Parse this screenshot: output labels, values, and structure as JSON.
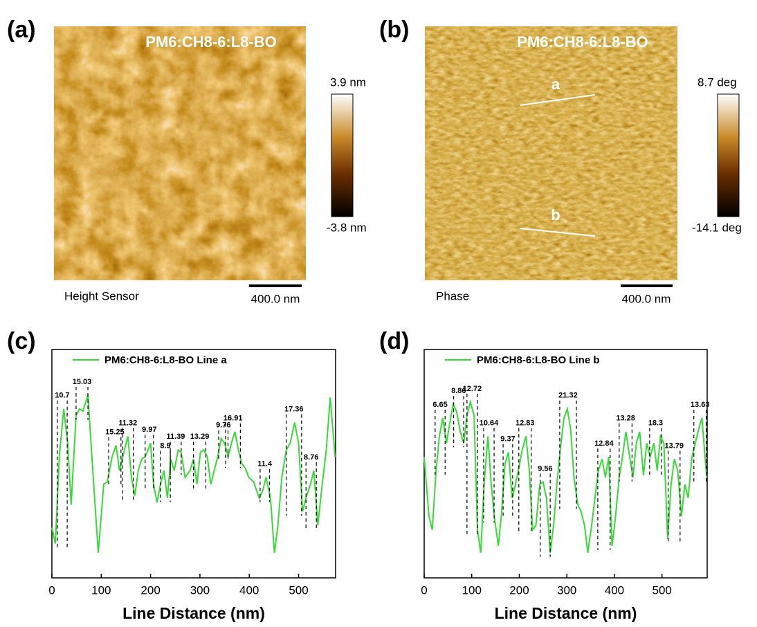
{
  "panels": [
    {
      "label": "(a)",
      "title": "PM6:CH8-6:L8-BO",
      "colorbar_max": "3.9 nm",
      "colorbar_min": "-3.8 nm",
      "channel": "Height Sensor",
      "scale_bar": "400.0 nm"
    },
    {
      "label": "(b)",
      "title": "PM6:CH8-6:L8-BO",
      "colorbar_max": "8.7 deg",
      "colorbar_min": "-14.1 deg",
      "channel": "Phase",
      "scale_bar": "400.0 nm",
      "line_labels": [
        "a",
        "b"
      ]
    }
  ],
  "chart_data": [
    {
      "type": "line",
      "panel_label": "(c)",
      "x_label": "Line Distance (nm)",
      "xlim": [
        0,
        575
      ],
      "xticks": [
        0,
        100,
        200,
        300,
        400,
        500
      ],
      "ylim": [
        0,
        100
      ],
      "x": [
        0,
        7,
        15,
        24,
        32,
        39,
        49,
        56,
        63,
        73,
        81,
        94,
        105,
        112,
        122,
        130,
        137,
        147,
        154,
        161,
        168,
        175,
        182,
        189,
        200,
        206,
        213,
        220,
        227,
        234,
        241,
        248,
        256,
        262,
        270,
        280,
        287,
        294,
        301,
        308,
        315,
        322,
        329,
        336,
        343,
        350,
        357,
        364,
        371,
        378,
        385,
        392,
        399,
        409,
        420,
        427,
        434,
        443,
        451,
        458,
        466,
        475,
        483,
        492,
        500,
        508,
        515,
        524,
        531,
        539,
        548,
        556,
        564,
        574
      ],
      "series": [
        {
          "name": "PM6:CH8-6:L8-BO Line a",
          "color": "#33dd33",
          "values": [
            22,
            15,
            53,
            74,
            59,
            32,
            71,
            74,
            73,
            80,
            53,
            11,
            41,
            42,
            53,
            58,
            47,
            56,
            62,
            44,
            36,
            47,
            52,
            53,
            59,
            41,
            33,
            41,
            47,
            35,
            52,
            47,
            56,
            55,
            44,
            47,
            52,
            41,
            55,
            56,
            53,
            41,
            47,
            53,
            61,
            59,
            53,
            59,
            64,
            56,
            50,
            48,
            44,
            42,
            35,
            38,
            44,
            35,
            11,
            23,
            44,
            56,
            59,
            68,
            59,
            29,
            35,
            41,
            47,
            23,
            41,
            56,
            79,
            53
          ]
        }
      ],
      "annotations": [
        {
          "value": 10.7,
          "x": [
            11,
            31
          ]
        },
        {
          "value": 15.03,
          "x": [
            49,
            73
          ]
        },
        {
          "value": 15.25,
          "x": [
            115,
            140
          ]
        },
        {
          "value": 11.32,
          "x": [
            143,
            165
          ]
        },
        {
          "value": 9.97,
          "x": [
            189,
            206
          ]
        },
        {
          "value": 8.9,
          "x": [
            220,
            240
          ]
        },
        {
          "value": 11.39,
          "x": [
            240,
            262
          ]
        },
        {
          "value": 13.29,
          "x": [
            287,
            312
          ]
        },
        {
          "value": 9.76,
          "x": [
            338,
            357
          ]
        },
        {
          "value": 16.91,
          "x": [
            352,
            382
          ]
        },
        {
          "value": 11.4,
          "x": [
            422,
            441
          ]
        },
        {
          "value": 17.36,
          "x": [
            475,
            506
          ]
        },
        {
          "value": 8.76,
          "x": [
            515,
            536
          ]
        }
      ]
    },
    {
      "type": "line",
      "panel_label": "(d)",
      "x_label": "Line Distance (nm)",
      "xlim": [
        0,
        595
      ],
      "xticks": [
        0,
        100,
        200,
        300,
        400,
        500
      ],
      "ylim": [
        0,
        100
      ],
      "x": [
        0,
        10,
        17,
        25,
        32,
        39,
        47,
        54,
        61,
        68,
        76,
        83,
        90,
        97,
        105,
        112,
        119,
        126,
        134,
        141,
        148,
        156,
        163,
        170,
        177,
        185,
        192,
        199,
        206,
        214,
        221,
        228,
        235,
        243,
        250,
        257,
        265,
        272,
        279,
        286,
        294,
        301,
        308,
        315,
        323,
        330,
        337,
        344,
        352,
        359,
        366,
        374,
        381,
        388,
        395,
        402,
        410,
        417,
        424,
        432,
        439,
        446,
        453,
        461,
        468,
        475,
        483,
        490,
        497,
        504,
        512,
        519,
        526,
        533,
        541,
        548,
        555,
        563,
        570,
        577,
        584,
        594
      ],
      "series": [
        {
          "name": "PM6:CH8-6:L8-BO Line b",
          "color": "#33dd33",
          "values": [
            53,
            27,
            21,
            47,
            62,
            70,
            59,
            68,
            76,
            73,
            64,
            59,
            71,
            77,
            71,
            21,
            11,
            41,
            62,
            41,
            26,
            14,
            29,
            50,
            55,
            35,
            41,
            48,
            56,
            62,
            47,
            21,
            23,
            41,
            42,
            35,
            11,
            23,
            41,
            56,
            70,
            74,
            65,
            44,
            32,
            29,
            23,
            11,
            23,
            35,
            47,
            52,
            44,
            53,
            14,
            26,
            44,
            53,
            64,
            53,
            44,
            59,
            64,
            45,
            59,
            53,
            59,
            47,
            62,
            59,
            17,
            41,
            52,
            47,
            27,
            41,
            35,
            53,
            59,
            65,
            70,
            44
          ]
        }
      ],
      "annotations": [
        {
          "value": 6.65,
          "x": [
            23,
            44
          ]
        },
        {
          "value": 8.86,
          "x": [
            62,
            83
          ]
        },
        {
          "value": 12.72,
          "x": [
            90,
            112
          ]
        },
        {
          "value": 10.64,
          "x": [
            125,
            147
          ]
        },
        {
          "value": 9.37,
          "x": [
            166,
            186
          ]
        },
        {
          "value": 12.83,
          "x": [
            199,
            225
          ]
        },
        {
          "value": 9.56,
          "x": [
            244,
            265
          ]
        },
        {
          "value": 21.32,
          "x": [
            285,
            320
          ]
        },
        {
          "value": 12.84,
          "x": [
            365,
            391
          ]
        },
        {
          "value": 13.28,
          "x": [
            410,
            437
          ]
        },
        {
          "value": 18.3,
          "x": [
            474,
            499
          ]
        },
        {
          "value": 13.79,
          "x": [
            513,
            538
          ]
        },
        {
          "value": 13.63,
          "x": [
            567,
            593
          ]
        }
      ]
    }
  ]
}
